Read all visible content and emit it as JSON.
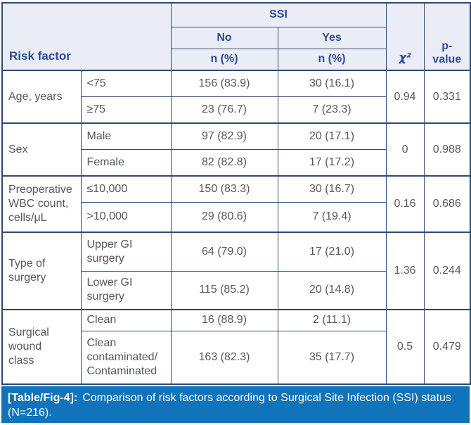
{
  "colors": {
    "border": "#2e4a73",
    "header_bg": "#ebedf6",
    "header_text": "#2b4b9d",
    "body_text": "#56575a",
    "footer_bg": "#1173b9",
    "footer_text": "#ffffff"
  },
  "header": {
    "risk_factor": "Risk factor",
    "ssi": "SSI",
    "no": "No",
    "yes": "Yes",
    "no_n_pct": "n (%)",
    "yes_n_pct": "n (%)",
    "chi_square": "χ²",
    "p_value": "p-\nvalue"
  },
  "groups": [
    {
      "label": "Age, years",
      "chi": "0.94",
      "p": "0.331",
      "rows": [
        {
          "category": "<75",
          "no": "156 (83.9)",
          "yes": "30 (16.1)"
        },
        {
          "category": "≥75",
          "no": "23 (76.7)",
          "yes": "7 (23.3)"
        }
      ]
    },
    {
      "label": "Sex",
      "chi": "0",
      "p": "0.988",
      "rows": [
        {
          "category": "Male",
          "no": "97 (82.9)",
          "yes": "20 (17.1)"
        },
        {
          "category": "Female",
          "no": "82 (82.8)",
          "yes": "17 (17.2)"
        }
      ]
    },
    {
      "label": "Preoperative\nWBC count,\ncells/μL",
      "chi": "0.16",
      "p": "0.686",
      "rows": [
        {
          "category": "≤10,000",
          "no": "150 (83.3)",
          "yes": "30 (16.7)"
        },
        {
          "category": ">10,000",
          "no": "29 (80.6)",
          "yes": "7 (19.4)"
        }
      ]
    },
    {
      "label": "Type of\nsurgery",
      "chi": "1.36",
      "p": "0.244",
      "rows": [
        {
          "category": "Upper GI\nsurgery",
          "no": "64 (79.0)",
          "yes": "17 (21.0)"
        },
        {
          "category": "Lower GI\nsurgery",
          "no": "115 (85.2)",
          "yes": "20 (14.8)"
        }
      ]
    },
    {
      "label": "Surgical\nwound\nclass",
      "chi": "0.5",
      "p": "0.479",
      "rows": [
        {
          "category": "Clean",
          "no": "16 (88.9)",
          "yes": "2 (11.1)"
        },
        {
          "category": "Clean\ncontaminated/\nContaminated",
          "no": "163 (82.3)",
          "yes": "35 (17.7)"
        }
      ]
    }
  ],
  "caption": {
    "label": "[Table/Fig-4]:",
    "text": "Comparison of risk factors according to Surgical Site Infection (SSI) status (N=216)."
  }
}
